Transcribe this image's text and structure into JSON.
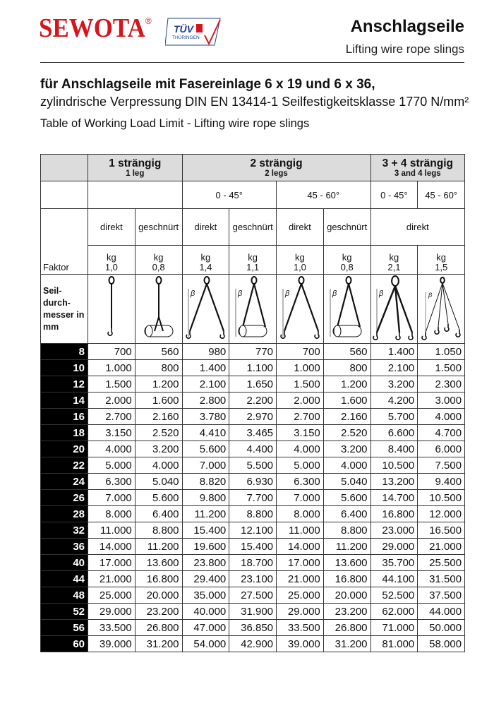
{
  "header": {
    "brand": "SEWOTA",
    "registered": "®",
    "cert_logo": "Zertifiziert durch TÜV Thüringen",
    "title": "Anschlagseile",
    "subtitle": "Lifting wire rope slings"
  },
  "intro": {
    "line1": "für Anschlagseile mit Fasereinlage 6 x 19 und 6 x 36,",
    "line2": "zylindrische Verpressung DIN EN 13414-1 Seilfestigkeitsklasse 1770 N/mm²",
    "line3": "Table of Working Load Limit - Lifting wire rope slings"
  },
  "table": {
    "groups": [
      {
        "de": "1 strängig",
        "en": "1 leg"
      },
      {
        "de": "2 strängig",
        "en": "2 legs"
      },
      {
        "de": "3 + 4 strängig",
        "en": "3 and 4 legs"
      }
    ],
    "angles": [
      "0 - 45°",
      "45 - 60°",
      "0 - 45°",
      "45 - 60°"
    ],
    "modes": [
      "direkt",
      "geschnürt",
      "direkt",
      "geschnürt",
      "direkt",
      "geschnürt",
      "direkt"
    ],
    "faktor_label": "Faktor",
    "unit": "kg",
    "factors": [
      "1,0",
      "0,8",
      "1,4",
      "1,1",
      "1,0",
      "0,8",
      "2,1",
      "1,5"
    ],
    "diameter_label": "Seil-\ndurch-\nmesser in\nmm",
    "illustrations": [
      "single-leg-direct",
      "single-leg-choked",
      "two-leg-direct",
      "two-leg-choked",
      "two-leg-direct",
      "two-leg-choked",
      "three-leg-direct",
      "four-leg-direct"
    ],
    "rows": [
      [
        "8",
        "700",
        "560",
        "980",
        "770",
        "700",
        "560",
        "1.400",
        "1.050"
      ],
      [
        "10",
        "1.000",
        "800",
        "1.400",
        "1.100",
        "1.000",
        "800",
        "2.100",
        "1.500"
      ],
      [
        "12",
        "1.500",
        "1.200",
        "2.100",
        "1.650",
        "1.500",
        "1.200",
        "3.200",
        "2.300"
      ],
      [
        "14",
        "2.000",
        "1.600",
        "2.800",
        "2.200",
        "2.000",
        "1.600",
        "4.200",
        "3.000"
      ],
      [
        "16",
        "2.700",
        "2.160",
        "3.780",
        "2.970",
        "2.700",
        "2.160",
        "5.700",
        "4.000"
      ],
      [
        "18",
        "3.150",
        "2.520",
        "4.410",
        "3.465",
        "3.150",
        "2.520",
        "6.600",
        "4.700"
      ],
      [
        "20",
        "4.000",
        "3.200",
        "5.600",
        "4.400",
        "4.000",
        "3.200",
        "8.400",
        "6.000"
      ],
      [
        "22",
        "5.000",
        "4.000",
        "7.000",
        "5.500",
        "5.000",
        "4.000",
        "10.500",
        "7.500"
      ],
      [
        "24",
        "6.300",
        "5.040",
        "8.820",
        "6.930",
        "6.300",
        "5.040",
        "13.200",
        "9.400"
      ],
      [
        "26",
        "7.000",
        "5.600",
        "9.800",
        "7.700",
        "7.000",
        "5.600",
        "14.700",
        "10.500"
      ],
      [
        "28",
        "8.000",
        "6.400",
        "11.200",
        "8.800",
        "8.000",
        "6.400",
        "16.800",
        "12.000"
      ],
      [
        "32",
        "11.000",
        "8.800",
        "15.400",
        "12.100",
        "11.000",
        "8.800",
        "23.000",
        "16.500"
      ],
      [
        "36",
        "14.000",
        "11.200",
        "19.600",
        "15.400",
        "14.000",
        "11.200",
        "29.000",
        "21.000"
      ],
      [
        "40",
        "17.000",
        "13.600",
        "23.800",
        "18.700",
        "17.000",
        "13.600",
        "35.700",
        "25.500"
      ],
      [
        "44",
        "21.000",
        "16.800",
        "29.400",
        "23.100",
        "21.000",
        "16.800",
        "44.100",
        "31.500"
      ],
      [
        "48",
        "25.000",
        "20.000",
        "35.000",
        "27.500",
        "25.000",
        "20.000",
        "52.500",
        "37.500"
      ],
      [
        "52",
        "29.000",
        "23.200",
        "40.000",
        "31.900",
        "29.000",
        "23.200",
        "62.000",
        "44.000"
      ],
      [
        "56",
        "33.500",
        "26.800",
        "47.000",
        "36.850",
        "33.500",
        "26.800",
        "71.000",
        "50.000"
      ],
      [
        "60",
        "39.000",
        "31.200",
        "54.000",
        "42.900",
        "39.000",
        "31.200",
        "81.000",
        "58.000"
      ]
    ]
  },
  "colors": {
    "brand": "#d6141c",
    "tuv_blue": "#1d3f94",
    "header_gray": "#dcdcdc"
  }
}
